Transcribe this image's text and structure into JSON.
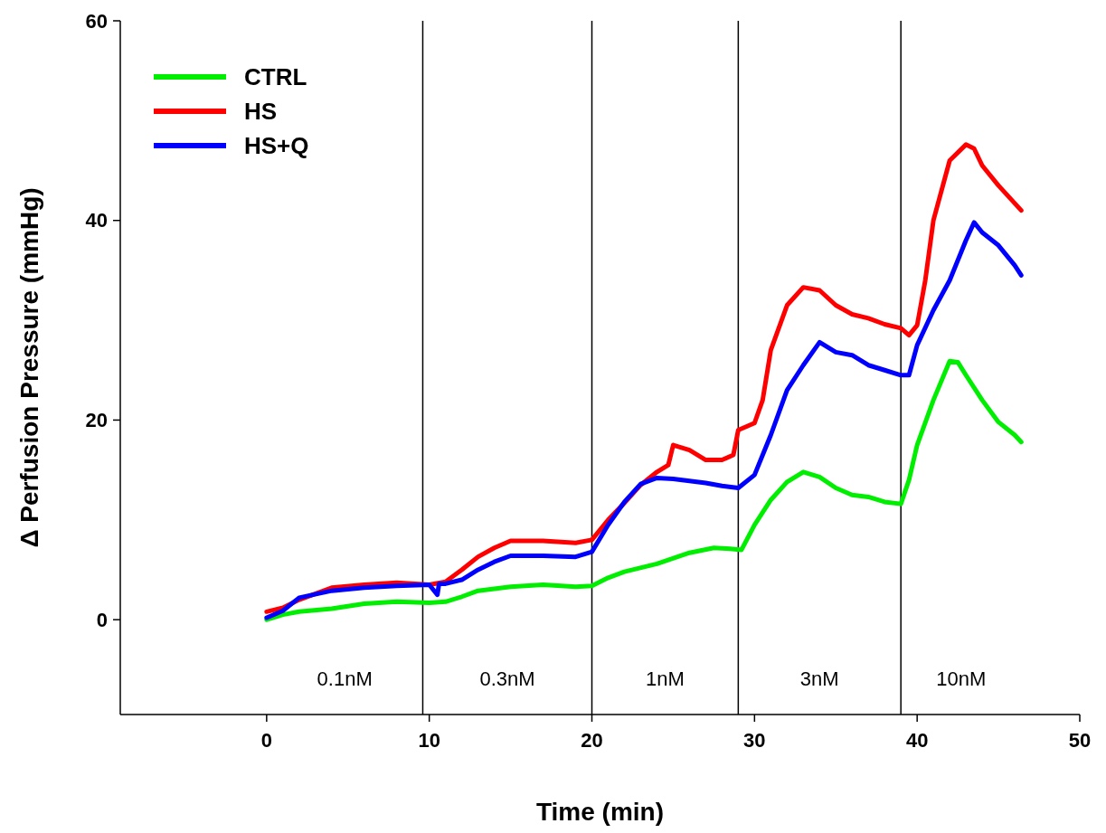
{
  "chart_data": {
    "type": "line",
    "xlabel": "Time (min)",
    "ylabel": "Δ Perfusion Pressure (mmHg)",
    "xlim": [
      -9,
      50
    ],
    "ylim": [
      -9.5,
      60
    ],
    "xticks": [
      0,
      10,
      20,
      30,
      40,
      50
    ],
    "yticks": [
      0,
      20,
      40,
      60
    ],
    "legend": "top left",
    "grid": false,
    "marker": "none",
    "line_style": "solid",
    "series": [
      {
        "name": "CTRL",
        "color": "#00ee00",
        "x": [
          0,
          1,
          2,
          4,
          6,
          8,
          10,
          11,
          12,
          13,
          15,
          17,
          19,
          20,
          21,
          22,
          24,
          26,
          27.5,
          28.5,
          29.2,
          30,
          31,
          32,
          33,
          34,
          35,
          36,
          37,
          38,
          39,
          39.5,
          40,
          41,
          42,
          42.5,
          43,
          44,
          45,
          46,
          46.4
        ],
        "values": [
          0,
          0.5,
          0.8,
          1.1,
          1.6,
          1.8,
          1.7,
          1.8,
          2.3,
          2.9,
          3.3,
          3.5,
          3.3,
          3.4,
          4.2,
          4.8,
          5.6,
          6.7,
          7.2,
          7.1,
          7,
          9.5,
          12,
          13.8,
          14.8,
          14.3,
          13.2,
          12.5,
          12.3,
          11.8,
          11.6,
          14,
          17.5,
          22,
          25.9,
          25.8,
          24.5,
          22,
          19.8,
          18.5,
          17.8
        ]
      },
      {
        "name": "HS",
        "color": "#ff0000",
        "x": [
          0,
          1,
          2,
          4,
          6,
          8,
          10,
          11,
          12,
          13,
          14,
          15,
          17,
          19,
          20,
          21,
          22,
          23,
          24,
          24.7,
          25,
          26,
          27,
          28,
          28.7,
          29,
          30,
          30.5,
          31,
          32,
          33,
          34,
          35,
          36,
          37,
          38,
          39,
          39.5,
          40,
          40.5,
          41,
          42,
          43,
          43.5,
          44,
          45,
          46.4
        ],
        "values": [
          0.8,
          1.2,
          2,
          3.2,
          3.5,
          3.7,
          3.5,
          3.8,
          5,
          6.3,
          7.2,
          7.9,
          7.9,
          7.7,
          8,
          10,
          11.7,
          13.5,
          14.8,
          15.5,
          17.5,
          17,
          16,
          16,
          16.5,
          19,
          19.7,
          22,
          27,
          31.5,
          33.3,
          33,
          31.5,
          30.6,
          30.2,
          29.6,
          29.2,
          28.5,
          29.5,
          34,
          40,
          46,
          47.6,
          47.2,
          45.5,
          43.5,
          41
        ]
      },
      {
        "name": "HS+Q",
        "color": "#0000ff",
        "x": [
          0,
          1,
          2,
          4,
          6,
          8,
          10,
          10.5,
          10.6,
          11,
          12,
          13,
          14,
          15,
          17,
          19,
          20,
          21,
          22,
          23,
          24,
          25,
          26,
          27,
          28,
          29,
          30,
          31,
          32,
          33,
          34,
          35,
          36,
          37,
          38,
          39,
          39.5,
          40,
          41,
          42,
          43,
          43.5,
          44,
          45,
          46,
          46.4
        ],
        "values": [
          0.2,
          0.9,
          2.2,
          2.9,
          3.2,
          3.4,
          3.5,
          2.5,
          3.6,
          3.6,
          4,
          5,
          5.8,
          6.4,
          6.4,
          6.3,
          6.8,
          9.5,
          11.8,
          13.6,
          14.2,
          14.1,
          13.9,
          13.7,
          13.4,
          13.2,
          14.5,
          18.5,
          23,
          25.5,
          27.8,
          26.8,
          26.5,
          25.5,
          25,
          24.5,
          24.5,
          27.5,
          31,
          34,
          38,
          39.8,
          38.8,
          37.5,
          35.5,
          34.5
        ]
      }
    ],
    "ref_lines": [
      {
        "axis": "x",
        "value": 9.6,
        "color": "#000000"
      },
      {
        "axis": "x",
        "value": 20,
        "color": "#000000"
      },
      {
        "axis": "x",
        "value": 29,
        "color": "#000000"
      },
      {
        "axis": "x",
        "value": 39,
        "color": "#000000"
      }
    ],
    "annotations": [
      "0.1nM",
      "0.3nM",
      "1nM",
      "3nM",
      "10nM"
    ]
  }
}
